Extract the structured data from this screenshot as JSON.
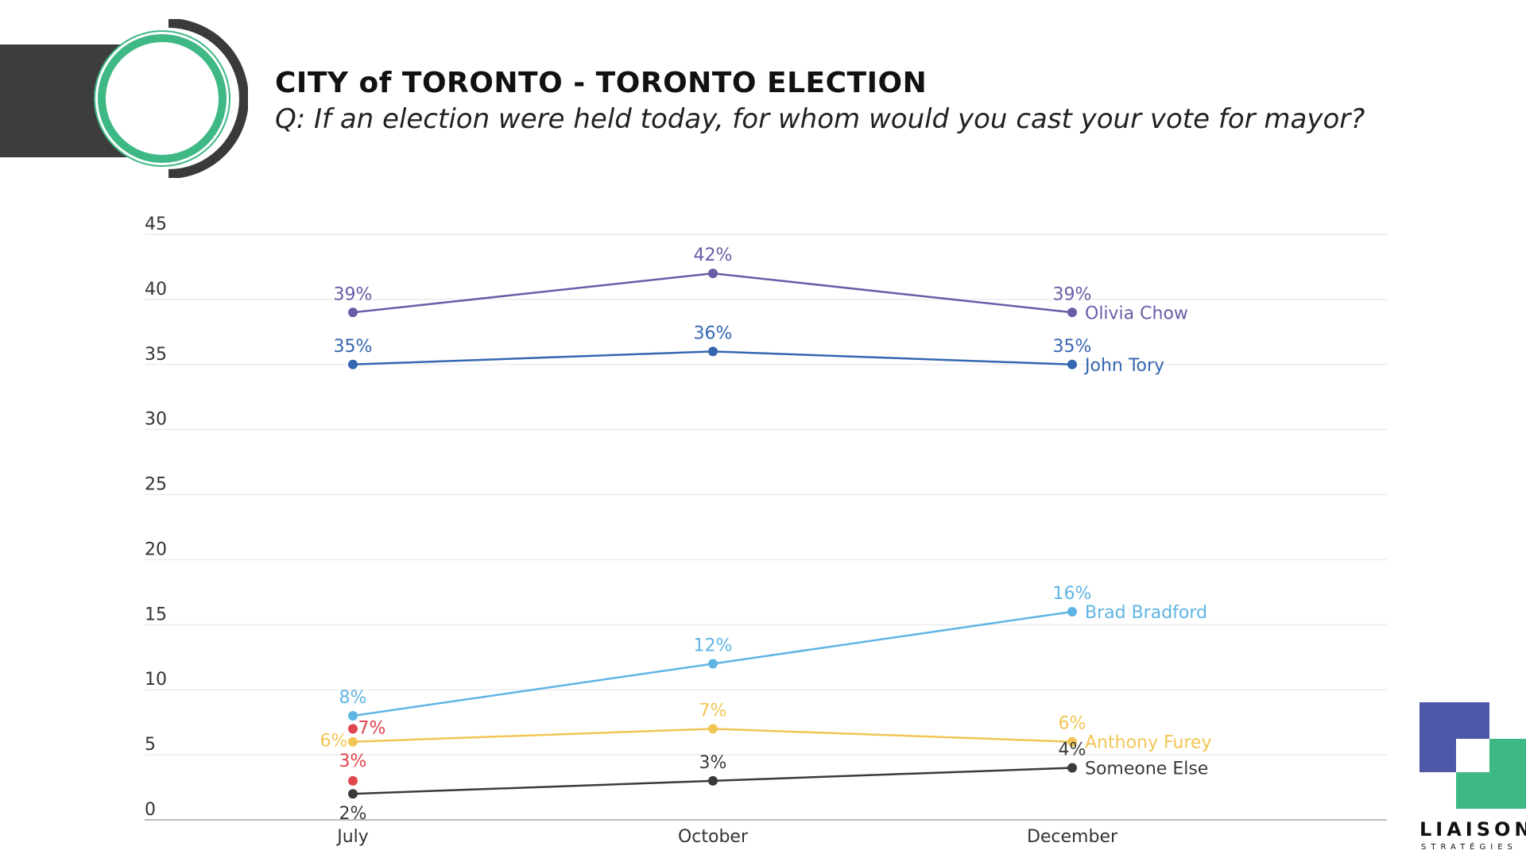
{
  "header": {
    "title": "CITY of TORONTO - TORONTO ELECTION",
    "subtitle": "Q: If an election were held today, for whom would you cast your vote for mayor?"
  },
  "logo": {
    "name": "LIAISON",
    "sub": "STRATÉGIES"
  },
  "chart_data": {
    "type": "line",
    "categories": [
      "July",
      "October",
      "December"
    ],
    "ylim": [
      0,
      45
    ],
    "yticks": [
      0,
      5,
      10,
      15,
      20,
      25,
      30,
      35,
      40,
      45
    ],
    "grid": true,
    "legend": "none",
    "series": [
      {
        "name": "Olivia Chow",
        "color": "#6c5ba7",
        "values": [
          39,
          42,
          39
        ],
        "labels": [
          "39%",
          "42%",
          "39%"
        ]
      },
      {
        "name": "John Tory",
        "color": "#3566b0",
        "values": [
          35,
          36,
          35
        ],
        "labels": [
          "35%",
          "36%",
          "35%"
        ]
      },
      {
        "name": "Brad Bradford",
        "color": "#5fb4e4",
        "values": [
          8,
          12,
          16
        ],
        "labels": [
          "8%",
          "12%",
          "16%"
        ]
      },
      {
        "name": "Anthony Furey",
        "color": "#f2c655",
        "values": [
          6,
          7,
          6
        ],
        "labels": [
          "6%",
          "7%",
          "6%"
        ]
      },
      {
        "name": "Someone Else",
        "color": "#3a3a3a",
        "values": [
          2,
          3,
          4
        ],
        "labels": [
          "2%",
          "3%",
          "4%"
        ]
      },
      {
        "name": "",
        "color": "#e0444c",
        "values": [
          7,
          3,
          null
        ],
        "labels": [
          "7%",
          "3%",
          ""
        ],
        "at": "July"
      }
    ]
  }
}
